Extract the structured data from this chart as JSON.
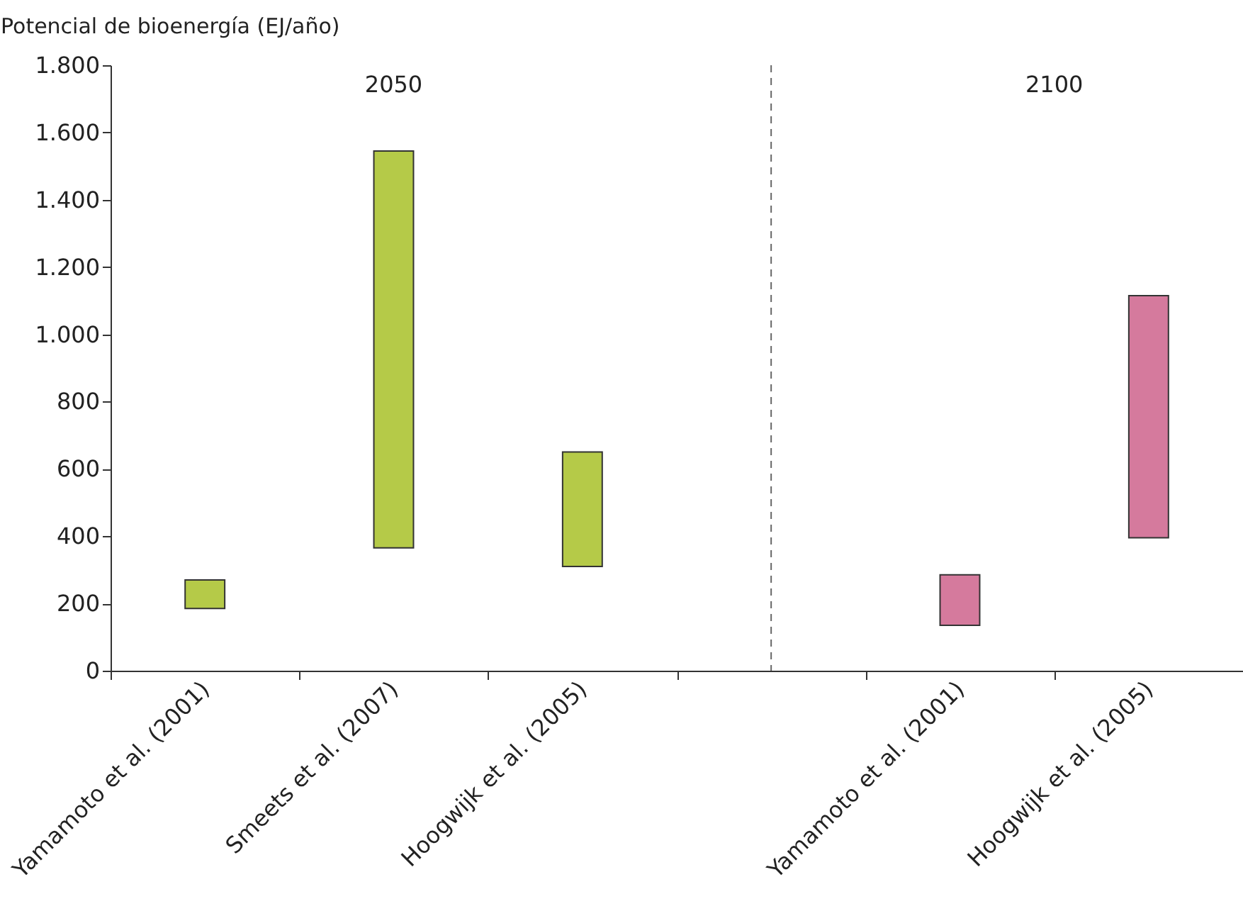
{
  "chart_data": {
    "type": "bar",
    "ylabel": "Potencial de bioenergía (EJ/año)",
    "categories": [
      "Yamamoto et al. (2001)",
      "Smeets et al. (2007)",
      "Hoogwijk et al. (2005)",
      null,
      "Yamamoto et al. (2001)",
      "Hoogwijk et al. (2005)"
    ],
    "base": [
      185,
      365,
      310,
      null,
      135,
      395
    ],
    "values": [
      85,
      1180,
      340,
      null,
      150,
      720
    ],
    "colors": [
      "#b5ca48",
      "#b5ca48",
      "#b5ca48",
      null,
      "#d57a9d",
      "#d57a9d"
    ],
    "ylim": [
      0,
      1800
    ],
    "yticks": [
      0,
      200,
      400,
      600,
      800,
      {
        "value": 1000,
        "label": "1.000"
      },
      {
        "value": 1200,
        "label": "1.200"
      },
      {
        "value": 1400,
        "label": "1.400"
      },
      {
        "value": 1600,
        "label": "1.600"
      },
      {
        "value": 1800,
        "label": "1.800"
      }
    ],
    "ref_lines": [
      {
        "axis": "x",
        "value": null,
        "line_style": "dashed",
        "color": "#666666"
      }
    ],
    "annotations": [
      "2050",
      "2100"
    ],
    "grid": false
  }
}
